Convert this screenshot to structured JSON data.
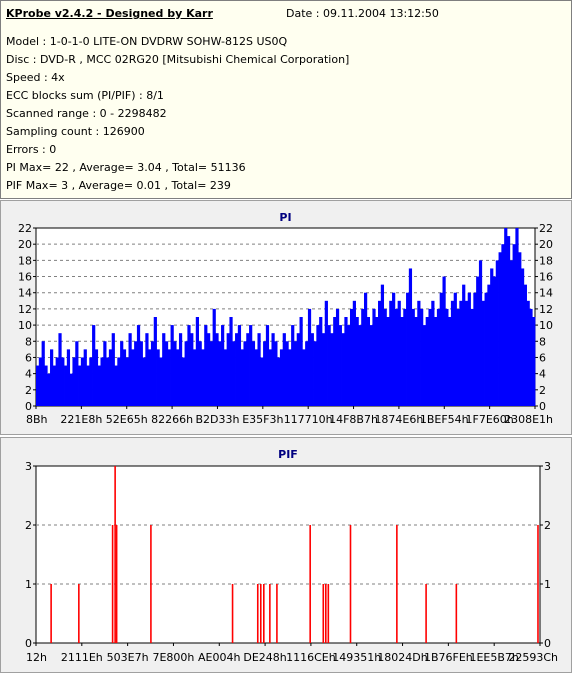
{
  "info": {
    "title": "KProbe v2.4.2 - Designed by Karr",
    "date": "Date : 09.11.2004 13:12:50",
    "lines": [
      "Model : 1-0-1-0 LITE-ON DVDRW SOHW-812S  US0Q",
      "Disc : DVD-R , MCC 02RG20   [Mitsubishi Chemical Corporation]",
      "Speed : 4x",
      "ECC blocks sum (PI/PIF) : 8/1",
      "Scanned range : 0 - 2298482",
      "Sampling count : 126900",
      "Errors : 0",
      "PI Max= 22 , Average= 3.04 , Total= 51136",
      "PIF Max= 3 , Average= 0.01 , Total= 239"
    ]
  },
  "colors": {
    "series": "#0000ff",
    "pif_series": "#ff0000",
    "grid": "#808080",
    "title": "#000080"
  },
  "chart_data": [
    {
      "type": "bar",
      "title": "PI",
      "ylim": [
        0,
        22
      ],
      "yticks": [
        0,
        2,
        4,
        6,
        8,
        10,
        12,
        14,
        16,
        18,
        20,
        22
      ],
      "xticks": [
        "8Bh",
        "221E8h",
        "52E65h",
        "82266h",
        "B2D33h",
        "E35F3h",
        "117710h",
        "14F8B7h",
        "1874E6h",
        "1BEF54h",
        "1F7E60h",
        "2308E1h"
      ],
      "grid": true,
      "series": [
        {
          "values": [
            5,
            6,
            8,
            5,
            4,
            7,
            5,
            6,
            9,
            6,
            5,
            7,
            4,
            6,
            8,
            5,
            6,
            7,
            5,
            6,
            10,
            7,
            5,
            6,
            8,
            6,
            7,
            9,
            5,
            6,
            8,
            7,
            6,
            9,
            7,
            8,
            10,
            8,
            6,
            9,
            7,
            8,
            11,
            7,
            6,
            9,
            8,
            7,
            10,
            8,
            7,
            9,
            6,
            8,
            10,
            9,
            7,
            11,
            8,
            7,
            10,
            9,
            8,
            12,
            9,
            8,
            10,
            7,
            9,
            11,
            8,
            9,
            10,
            7,
            8,
            9,
            10,
            8,
            7,
            9,
            6,
            8,
            10,
            7,
            9,
            8,
            6,
            7,
            9,
            8,
            7,
            10,
            8,
            9,
            11,
            7,
            8,
            12,
            9,
            8,
            10,
            11,
            9,
            13,
            10,
            9,
            11,
            12,
            10,
            9,
            11,
            10,
            12,
            13,
            11,
            10,
            12,
            14,
            11,
            10,
            12,
            11,
            13,
            15,
            12,
            11,
            13,
            14,
            12,
            13,
            11,
            12,
            14,
            17,
            12,
            11,
            13,
            12,
            10,
            11,
            12,
            13,
            11,
            12,
            14,
            16,
            12,
            11,
            13,
            14,
            12,
            13,
            15,
            13,
            14,
            12,
            14,
            16,
            18,
            13,
            14,
            15,
            17,
            16,
            18,
            19,
            20,
            22,
            21,
            18,
            20,
            22,
            19,
            17,
            15,
            13,
            12,
            11
          ],
          "description_note": ""
        }
      ]
    },
    {
      "type": "bar",
      "title": "PIF",
      "ylim": [
        0,
        3
      ],
      "yticks": [
        0,
        1,
        2,
        3
      ],
      "xticks": [
        "12h",
        "2111Eh",
        "503E7h",
        "7E800h",
        "AE004h",
        "DE248h",
        "1116CEh",
        "149351h",
        "18024Dh",
        "1B76FEh",
        "1EE5B7h",
        "22593Ch"
      ],
      "grid": true,
      "series": [
        {
          "points": [
            {
              "x": 0.03,
              "y": 1
            },
            {
              "x": 0.085,
              "y": 1
            },
            {
              "x": 0.152,
              "y": 2
            },
            {
              "x": 0.157,
              "y": 3
            },
            {
              "x": 0.16,
              "y": 2
            },
            {
              "x": 0.228,
              "y": 2
            },
            {
              "x": 0.39,
              "y": 1
            },
            {
              "x": 0.44,
              "y": 1
            },
            {
              "x": 0.446,
              "y": 1
            },
            {
              "x": 0.452,
              "y": 1
            },
            {
              "x": 0.464,
              "y": 1
            },
            {
              "x": 0.478,
              "y": 1
            },
            {
              "x": 0.544,
              "y": 2
            },
            {
              "x": 0.57,
              "y": 1
            },
            {
              "x": 0.575,
              "y": 1
            },
            {
              "x": 0.58,
              "y": 1
            },
            {
              "x": 0.624,
              "y": 2
            },
            {
              "x": 0.716,
              "y": 2
            },
            {
              "x": 0.774,
              "y": 1
            },
            {
              "x": 0.834,
              "y": 1
            },
            {
              "x": 0.996,
              "y": 2
            }
          ]
        }
      ]
    }
  ]
}
